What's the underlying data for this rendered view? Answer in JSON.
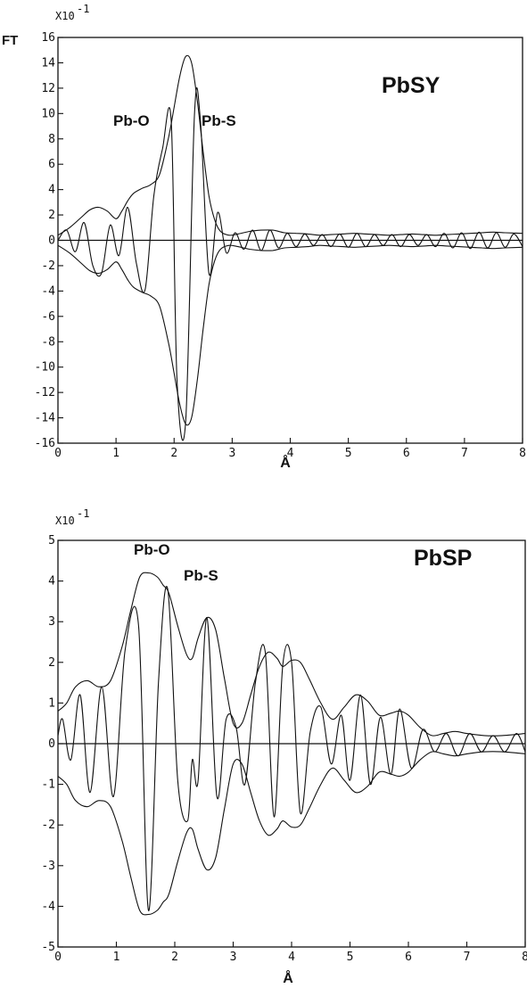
{
  "chart_data": [
    {
      "type": "line",
      "title": "PbSY",
      "ylabel": "FT",
      "xlabel": "Å",
      "y_multiplier": "X10",
      "y_multiplier_exp": "-1",
      "xlim": [
        0,
        8
      ],
      "ylim": [
        -16,
        16
      ],
      "xticks": [
        0,
        1,
        2,
        3,
        4,
        5,
        6,
        7,
        8
      ],
      "yticks": [
        16,
        14,
        12,
        10,
        8,
        6,
        4,
        2,
        0,
        -2,
        -4,
        -6,
        -8,
        -10,
        -12,
        -14,
        -16
      ],
      "grid": false,
      "annotations": [
        {
          "text": "Pb-O",
          "x": 1.55,
          "y": 9.6
        },
        {
          "text": "Pb-S",
          "x": 2.75,
          "y": 9.6
        }
      ],
      "series": [
        {
          "role": "magnitude",
          "x": [
            0,
            0.2,
            0.4,
            0.55,
            0.7,
            0.85,
            1.0,
            1.1,
            1.2,
            1.3,
            1.45,
            1.6,
            1.75,
            1.9,
            2.0,
            2.1,
            2.2,
            2.3,
            2.4,
            2.5,
            2.6,
            2.7,
            2.8,
            2.95,
            3.1,
            3.3,
            3.5,
            3.7,
            3.9,
            4.1,
            4.3,
            4.5,
            4.7,
            4.9,
            5.1,
            5.3,
            5.5,
            5.7,
            5.9,
            6.1,
            6.3,
            6.5,
            6.7,
            6.9,
            7.1,
            7.3,
            7.5,
            7.7,
            8.0
          ],
          "y": [
            0.4,
            1.0,
            1.8,
            2.4,
            2.6,
            2.3,
            1.7,
            2.3,
            3.1,
            3.7,
            4.1,
            4.4,
            5.2,
            8.0,
            10.5,
            13.0,
            14.5,
            14.0,
            11.0,
            7.0,
            3.5,
            1.6,
            0.7,
            0.4,
            0.5,
            0.7,
            0.8,
            0.8,
            0.6,
            0.55,
            0.5,
            0.4,
            0.45,
            0.5,
            0.55,
            0.5,
            0.45,
            0.4,
            0.45,
            0.5,
            0.45,
            0.4,
            0.45,
            0.5,
            0.55,
            0.6,
            0.65,
            0.6,
            0.55
          ]
        },
        {
          "role": "imaginary",
          "x": [
            0,
            0.15,
            0.3,
            0.45,
            0.6,
            0.75,
            0.9,
            1.05,
            1.2,
            1.35,
            1.5,
            1.65,
            1.8,
            1.95,
            2.05,
            2.2,
            2.35,
            2.45,
            2.6,
            2.75,
            2.9,
            3.05,
            3.2,
            3.35,
            3.5,
            3.65,
            3.8,
            3.95,
            4.1,
            4.25,
            4.4,
            4.55,
            4.7,
            4.85,
            5.0,
            5.15,
            5.3,
            5.45,
            5.6,
            5.75,
            5.9,
            6.05,
            6.2,
            6.35,
            6.5,
            6.65,
            6.8,
            6.95,
            7.1,
            7.25,
            7.4,
            7.55,
            7.7,
            7.85,
            8.0
          ],
          "y": [
            0,
            0.8,
            -0.9,
            1.4,
            -2.0,
            -2.6,
            1.2,
            -1.2,
            2.6,
            -1.8,
            -3.9,
            3.5,
            7.2,
            9.4,
            -11.0,
            -14.2,
            9.8,
            9.6,
            -2.6,
            2.2,
            -1.0,
            0.6,
            -0.7,
            0.8,
            -0.8,
            0.8,
            -0.6,
            0.55,
            -0.5,
            0.5,
            -0.4,
            0.45,
            -0.5,
            0.5,
            -0.55,
            0.55,
            -0.5,
            0.45,
            -0.4,
            0.45,
            -0.5,
            0.45,
            -0.4,
            0.45,
            -0.5,
            0.55,
            -0.6,
            0.6,
            -0.65,
            0.65,
            -0.6,
            0.6,
            -0.55,
            0.5,
            -0.5
          ]
        }
      ]
    },
    {
      "type": "line",
      "title": "PbSP",
      "xlabel": "Å",
      "y_multiplier": "X10",
      "y_multiplier_exp": "-1",
      "xlim": [
        0,
        8
      ],
      "ylim": [
        -5,
        5
      ],
      "xticks": [
        0,
        1,
        2,
        3,
        4,
        5,
        6,
        7,
        8
      ],
      "yticks": [
        5,
        4,
        3,
        2,
        1,
        0,
        -1,
        -2,
        -3,
        -4,
        -5
      ],
      "grid": false,
      "annotations": [
        {
          "text": "Pb-O",
          "x": 1.25,
          "y": 4.6
        },
        {
          "text": "Pb-S",
          "x": 2.2,
          "y": 3.45
        }
      ],
      "series": [
        {
          "role": "magnitude",
          "x": [
            0,
            0.15,
            0.3,
            0.5,
            0.7,
            0.9,
            1.1,
            1.25,
            1.4,
            1.55,
            1.7,
            1.8,
            1.9,
            2.05,
            2.2,
            2.3,
            2.4,
            2.55,
            2.7,
            2.85,
            3.0,
            3.15,
            3.3,
            3.45,
            3.6,
            3.75,
            3.85,
            4.0,
            4.15,
            4.3,
            4.5,
            4.7,
            4.9,
            5.1,
            5.3,
            5.5,
            5.7,
            5.85,
            6.0,
            6.2,
            6.4,
            6.6,
            6.8,
            7.0,
            7.3,
            7.6,
            8.0
          ],
          "y": [
            0.8,
            1.0,
            1.4,
            1.55,
            1.4,
            1.55,
            2.4,
            3.3,
            4.1,
            4.2,
            4.1,
            3.9,
            3.7,
            2.9,
            2.2,
            2.1,
            2.6,
            3.1,
            2.8,
            1.6,
            0.5,
            0.5,
            1.2,
            1.9,
            2.25,
            2.1,
            1.9,
            2.05,
            2.0,
            1.6,
            1.0,
            0.6,
            0.9,
            1.2,
            1.05,
            0.7,
            0.75,
            0.8,
            0.7,
            0.4,
            0.2,
            0.25,
            0.3,
            0.25,
            0.2,
            0.2,
            0.25
          ]
        },
        {
          "role": "imaginary",
          "x": [
            0,
            0.08,
            0.22,
            0.38,
            0.55,
            0.75,
            0.95,
            1.15,
            1.38,
            1.55,
            1.72,
            1.88,
            2.05,
            2.22,
            2.3,
            2.4,
            2.55,
            2.72,
            2.88,
            3.05,
            3.2,
            3.38,
            3.55,
            3.7,
            3.85,
            4.0,
            4.15,
            4.32,
            4.5,
            4.68,
            4.85,
            5.0,
            5.18,
            5.35,
            5.52,
            5.7,
            5.85,
            6.05,
            6.25,
            6.45,
            6.65,
            6.85,
            7.05,
            7.25,
            7.45,
            7.65,
            7.85,
            8.0
          ],
          "y": [
            0.2,
            0.6,
            -0.4,
            1.2,
            -1.2,
            1.4,
            -1.3,
            2.3,
            2.9,
            -4.1,
            1.5,
            3.8,
            -0.9,
            -1.9,
            -0.4,
            -0.9,
            3.1,
            -1.3,
            0.6,
            0.4,
            -1.0,
            1.5,
            2.25,
            -1.8,
            1.95,
            2.0,
            -1.7,
            0.3,
            0.9,
            -0.5,
            0.7,
            -0.9,
            1.2,
            -1.0,
            0.65,
            -0.75,
            0.85,
            -0.6,
            0.35,
            -0.2,
            0.25,
            -0.3,
            0.25,
            -0.2,
            0.2,
            -0.2,
            0.25,
            -0.2
          ]
        }
      ]
    }
  ]
}
